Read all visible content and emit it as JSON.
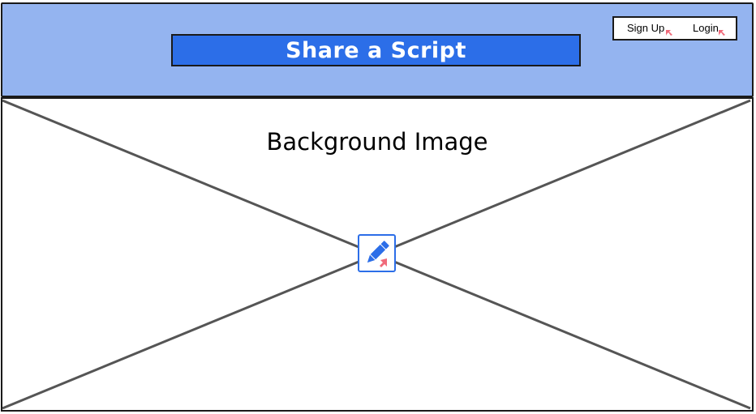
{
  "header": {
    "title": "Share a Script",
    "auth": {
      "signup_label": "Sign Up",
      "login_label": "Login"
    }
  },
  "main": {
    "background_label": "Background Image",
    "icon": "edit-pencil-icon"
  },
  "colors": {
    "header_bg": "#94b4f0",
    "title_bg": "#2c6ee8",
    "link_marker": "#f06a7a",
    "cross_line": "#555555",
    "icon_accent": "#2c6ee8"
  }
}
